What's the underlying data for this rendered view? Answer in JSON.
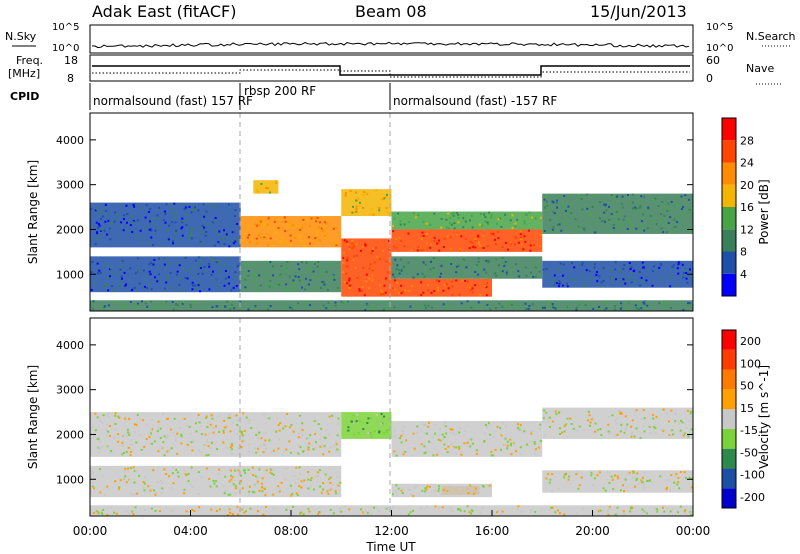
{
  "header": {
    "station": "Adak East (fitACF)",
    "beam": "Beam 08",
    "date": "15/Jun/2013"
  },
  "panels": {
    "nsky_label": "N.Sky",
    "nsearch_label": "N.Search",
    "freq_label_1": "Freq.",
    "freq_label_2": "[MHz]",
    "nave_label": "Nave",
    "cpid_label": "CPID",
    "nsky_ticks": [
      "10^5",
      "10^0"
    ],
    "nsearch_ticks": [
      "10^5",
      "10^0"
    ],
    "freq_ticks": [
      "18",
      "8"
    ],
    "nave_ticks": [
      "60",
      "0"
    ]
  },
  "cpid": [
    {
      "text": "normalsound (fast) 157 RF"
    },
    {
      "text": "rbsp 200 RF"
    },
    {
      "text": "normalsound (fast) -157 RF"
    }
  ],
  "colors": {
    "power": [
      "#0000ff",
      "#1f4fa6",
      "#3b7f5a",
      "#47a447",
      "#f5b400",
      "#ff8c00",
      "#ff4500",
      "#ff0000"
    ],
    "velocity": [
      "#0000cc",
      "#1c4fa3",
      "#2e8a4a",
      "#7cd23a",
      "#c8c8c8",
      "#ffa000",
      "#ff7a00",
      "#ff3c00",
      "#ff0000"
    ]
  },
  "chart_data": [
    {
      "type": "heatmap",
      "title": "",
      "ylabel": "Slant Range [km]",
      "ylim": [
        180,
        4600
      ],
      "yticks": [
        1000,
        2000,
        3000,
        4000
      ],
      "xlim": [
        0,
        24
      ],
      "colorbar": {
        "label": "Power [dB]",
        "ticks": [
          "4",
          "8",
          "12",
          "16",
          "20",
          "24",
          "28"
        ]
      },
      "bands": [
        {
          "hour_start": 0,
          "hour_end": 24,
          "range_start": 180,
          "range_end": 420,
          "color_index": 2
        },
        {
          "hour_start": 0,
          "hour_end": 6,
          "range_start": 1600,
          "range_end": 2600,
          "color_index": 1
        },
        {
          "hour_start": 0,
          "hour_end": 6,
          "range_start": 600,
          "range_end": 1400,
          "color_index": 1
        },
        {
          "hour_start": 6,
          "hour_end": 10,
          "range_start": 1600,
          "range_end": 2300,
          "color_index": 5
        },
        {
          "hour_start": 6,
          "hour_end": 10,
          "range_start": 600,
          "range_end": 1300,
          "color_index": 2
        },
        {
          "hour_start": 10,
          "hour_end": 12,
          "range_start": 2300,
          "range_end": 2900,
          "color_index": 4
        },
        {
          "hour_start": 10,
          "hour_end": 12,
          "range_start": 500,
          "range_end": 1800,
          "color_index": 6
        },
        {
          "hour_start": 12,
          "hour_end": 18,
          "range_start": 1500,
          "range_end": 2000,
          "color_index": 6
        },
        {
          "hour_start": 12,
          "hour_end": 18,
          "range_start": 2000,
          "range_end": 2400,
          "color_index": 3
        },
        {
          "hour_start": 12,
          "hour_end": 16,
          "range_start": 500,
          "range_end": 900,
          "color_index": 6
        },
        {
          "hour_start": 12,
          "hour_end": 18,
          "range_start": 900,
          "range_end": 1400,
          "color_index": 2
        },
        {
          "hour_start": 18,
          "hour_end": 24,
          "range_start": 1900,
          "range_end": 2800,
          "color_index": 2
        },
        {
          "hour_start": 18,
          "hour_end": 24,
          "range_start": 700,
          "range_end": 1300,
          "color_index": 1
        },
        {
          "hour_start": 6.5,
          "hour_end": 7.5,
          "range_start": 2800,
          "range_end": 3100,
          "color_index": 4
        }
      ]
    },
    {
      "type": "heatmap",
      "title": "",
      "ylabel": "Slant Range [km]",
      "xlabel": "Time UT",
      "ylim": [
        180,
        4600
      ],
      "yticks": [
        1000,
        2000,
        3000,
        4000
      ],
      "xlim": [
        0,
        24
      ],
      "xticks": [
        "00:00",
        "04:00",
        "08:00",
        "12:00",
        "16:00",
        "20:00",
        "00:00"
      ],
      "colorbar": {
        "label": "Velocity [m s^-1]",
        "ticks": [
          "200",
          "100",
          "50",
          "15",
          "-15",
          "-50",
          "-100",
          "-200"
        ]
      },
      "bands": [
        {
          "hour_start": 0,
          "hour_end": 24,
          "range_start": 180,
          "range_end": 420,
          "color_index": 4
        },
        {
          "hour_start": 0,
          "hour_end": 10,
          "range_start": 1500,
          "range_end": 2500,
          "color_index": 4
        },
        {
          "hour_start": 0,
          "hour_end": 10,
          "range_start": 600,
          "range_end": 1300,
          "color_index": 4
        },
        {
          "hour_start": 10,
          "hour_end": 12,
          "range_start": 1900,
          "range_end": 2500,
          "color_index": 3
        },
        {
          "hour_start": 12,
          "hour_end": 18,
          "range_start": 1500,
          "range_end": 2300,
          "color_index": 4
        },
        {
          "hour_start": 14,
          "hour_end": 15.5,
          "range_start": 650,
          "range_end": 850,
          "color_index": 5
        },
        {
          "hour_start": 12,
          "hour_end": 16,
          "range_start": 600,
          "range_end": 900,
          "color_index": 4
        },
        {
          "hour_start": 18,
          "hour_end": 24,
          "range_start": 1900,
          "range_end": 2600,
          "color_index": 4
        },
        {
          "hour_start": 18,
          "hour_end": 24,
          "range_start": 700,
          "range_end": 1200,
          "color_index": 4
        }
      ]
    }
  ]
}
